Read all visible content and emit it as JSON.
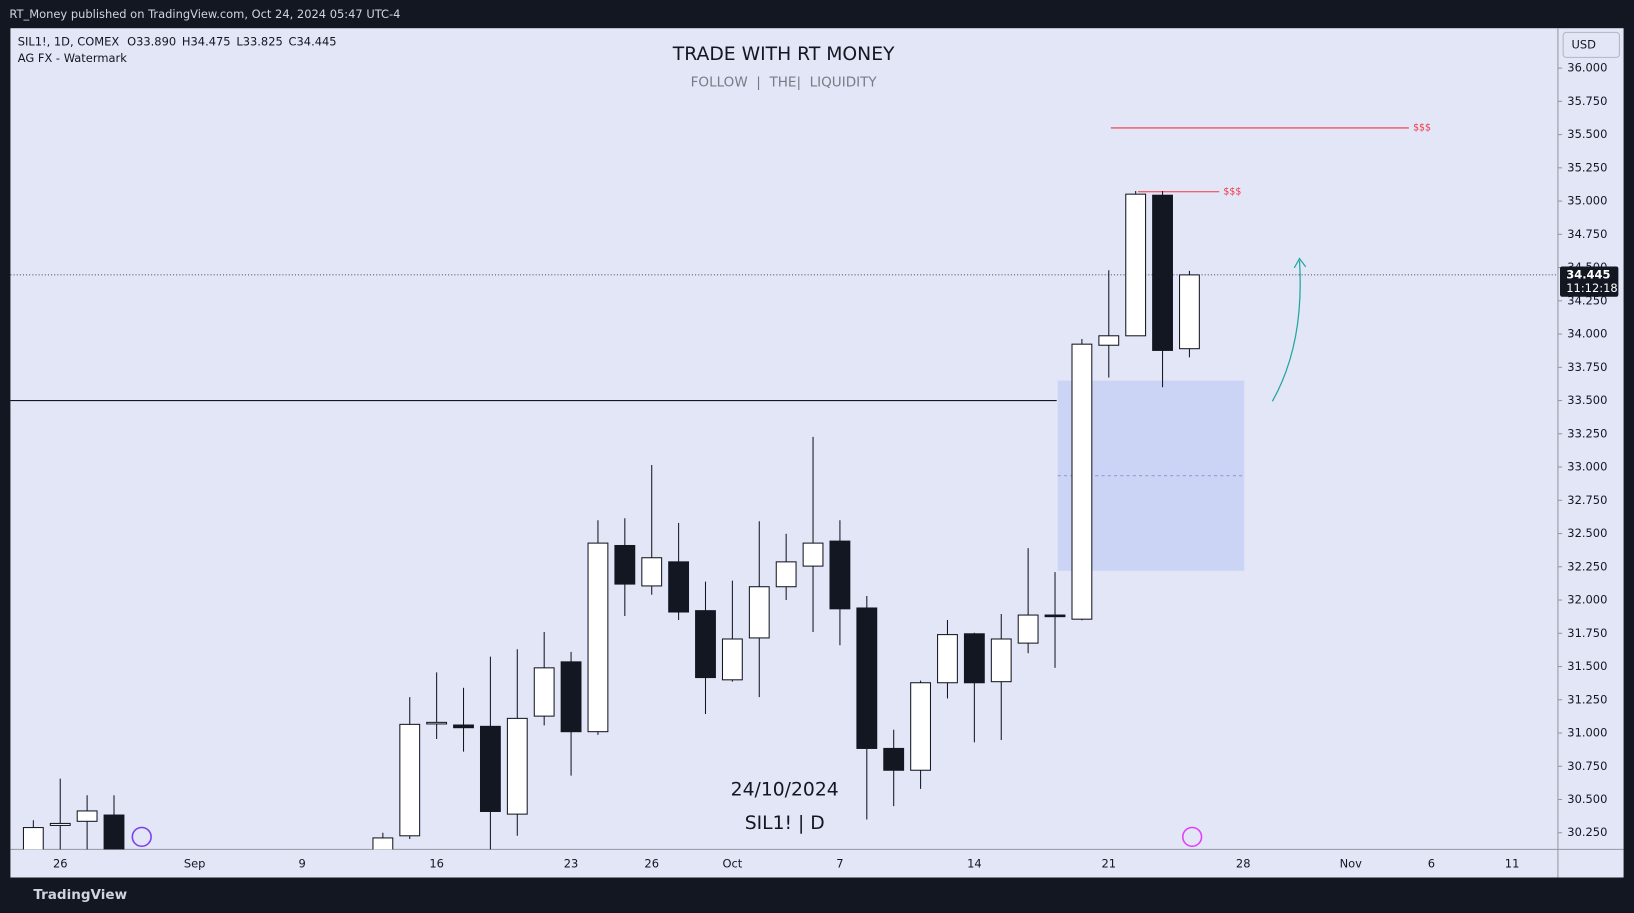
{
  "page": {
    "published": "RT_Money published on TradingView.com, Oct 24, 2024 05:47 UTC-4",
    "brand": "TradingView"
  },
  "chart_data": {
    "type": "candlestick",
    "symbol": "SIL1!, 1D, COMEX",
    "ohlc_labels": [
      "O33.890",
      "H34.475",
      "L33.825",
      "C34.445"
    ],
    "indicator": "AG FX - Watermark",
    "title": "TRADE WITH RT MONEY",
    "subtitle": "FOLLOW  |  THE|  LIQUIDITY",
    "watermark_date": "24/10/2024",
    "watermark_symbol": "SIL1! | D",
    "currency": "USD",
    "categories": [
      null,
      "26",
      null,
      null,
      null,
      null,
      "Sep",
      null,
      null,
      null,
      "9",
      null,
      null,
      null,
      null,
      "16",
      null,
      null,
      null,
      null,
      "23",
      null,
      null,
      "26",
      null,
      null,
      "Oct",
      null,
      null,
      null,
      "7",
      null,
      null,
      null,
      null,
      "14",
      null,
      null,
      null,
      null,
      "21",
      null,
      null,
      null,
      null,
      "28",
      null,
      null,
      null,
      "Nov",
      null,
      null,
      "6",
      null,
      null,
      "11"
    ],
    "open": [
      30.1,
      30.305,
      30.336,
      30.383,
      null,
      null,
      null,
      null,
      null,
      null,
      null,
      null,
      null,
      30.1,
      30.227,
      31.07,
      31.06,
      31.05,
      30.39,
      31.127,
      31.535,
      31.01,
      32.41,
      32.106,
      32.287,
      31.92,
      31.4,
      31.715,
      32.1,
      32.255,
      32.443,
      31.94,
      30.884,
      30.72,
      31.378,
      31.746,
      31.386,
      31.676,
      31.887,
      31.856,
      33.916,
      33.987,
      35.044,
      33.89,
      null,
      null,
      null,
      null,
      null,
      null,
      null,
      null,
      null,
      null,
      null,
      null
    ],
    "high": [
      30.344,
      30.657,
      30.532,
      30.532,
      null,
      null,
      null,
      null,
      null,
      null,
      null,
      null,
      null,
      30.25,
      31.27,
      31.456,
      31.34,
      31.574,
      31.63,
      31.76,
      31.61,
      32.6,
      32.615,
      33.015,
      32.58,
      32.138,
      32.146,
      32.592,
      32.498,
      33.227,
      32.6,
      32.03,
      31.025,
      31.394,
      31.85,
      31.754,
      31.895,
      32.39,
      32.21,
      33.963,
      34.48,
      35.076,
      35.076,
      34.475,
      null,
      null,
      null,
      null,
      null,
      null,
      null,
      null,
      null,
      null,
      null,
      null
    ],
    "low": [
      30.0,
      30.1,
      30.12,
      30.05,
      null,
      null,
      null,
      null,
      null,
      null,
      null,
      null,
      null,
      30.05,
      30.203,
      30.955,
      30.86,
      30.12,
      30.227,
      31.057,
      30.68,
      30.986,
      31.88,
      32.04,
      31.85,
      31.143,
      31.386,
      31.27,
      32.0,
      31.76,
      31.66,
      30.35,
      30.45,
      30.58,
      31.26,
      30.93,
      30.947,
      31.6,
      31.49,
      31.848,
      33.673,
      33.987,
      33.6,
      33.825,
      null,
      null,
      null,
      null,
      null,
      null,
      null,
      null,
      null,
      null,
      null,
      null
    ],
    "close": [
      30.289,
      30.32,
      30.414,
      30.1,
      null,
      null,
      null,
      null,
      null,
      null,
      null,
      null,
      null,
      30.211,
      31.065,
      31.08,
      31.04,
      30.41,
      31.11,
      31.49,
      31.01,
      32.428,
      32.12,
      32.318,
      31.91,
      31.417,
      31.707,
      32.1,
      32.287,
      32.428,
      31.934,
      30.884,
      30.72,
      31.378,
      31.74,
      31.378,
      31.707,
      31.887,
      31.875,
      33.924,
      33.987,
      35.052,
      33.877,
      34.445,
      null,
      null,
      null,
      null,
      null,
      null,
      null,
      null,
      null,
      null,
      null,
      null
    ],
    "up_color": "#ffffff",
    "down_color": "#131722",
    "ylim": [
      30.125,
      36.3
    ],
    "yticks": [
      {
        "value": 30.25,
        "label": "30.250"
      },
      {
        "value": 30.5,
        "label": "30.500"
      },
      {
        "value": 30.75,
        "label": "30.750"
      },
      {
        "value": 31,
        "label": "31.000"
      },
      {
        "value": 31.25,
        "label": "31.250"
      },
      {
        "value": 31.5,
        "label": "31.500"
      },
      {
        "value": 31.75,
        "label": "31.750"
      },
      {
        "value": 32,
        "label": "32.000"
      },
      {
        "value": 32.25,
        "label": "32.250"
      },
      {
        "value": 32.5,
        "label": "32.500"
      },
      {
        "value": 32.75,
        "label": "32.750"
      },
      {
        "value": 33,
        "label": "33.000"
      },
      {
        "value": 33.25,
        "label": "33.250"
      },
      {
        "value": 33.5,
        "label": "33.500"
      },
      {
        "value": 33.75,
        "label": "33.750"
      },
      {
        "value": 34,
        "label": "34.000"
      },
      {
        "value": 34.25,
        "label": "34.250"
      },
      {
        "value": 34.5,
        "label": "34.500"
      },
      {
        "value": 34.75,
        "label": "34.750"
      },
      {
        "value": 35,
        "label": "35.000"
      },
      {
        "value": 35.25,
        "label": "35.250"
      },
      {
        "value": 35.5,
        "label": "35.500"
      },
      {
        "value": 35.75,
        "label": "35.750"
      },
      {
        "value": 36,
        "label": "36.000"
      }
    ],
    "last_price": 34.445,
    "countdown": "11:12:18",
    "support_level": 33.5,
    "zone": [
      32.22,
      33.65
    ],
    "targets": [
      {
        "text": "$$$",
        "value": 35.55,
        "color": "#f23645"
      },
      {
        "text": "$$$",
        "value": 35.07,
        "color": "#f23645"
      }
    ]
  }
}
